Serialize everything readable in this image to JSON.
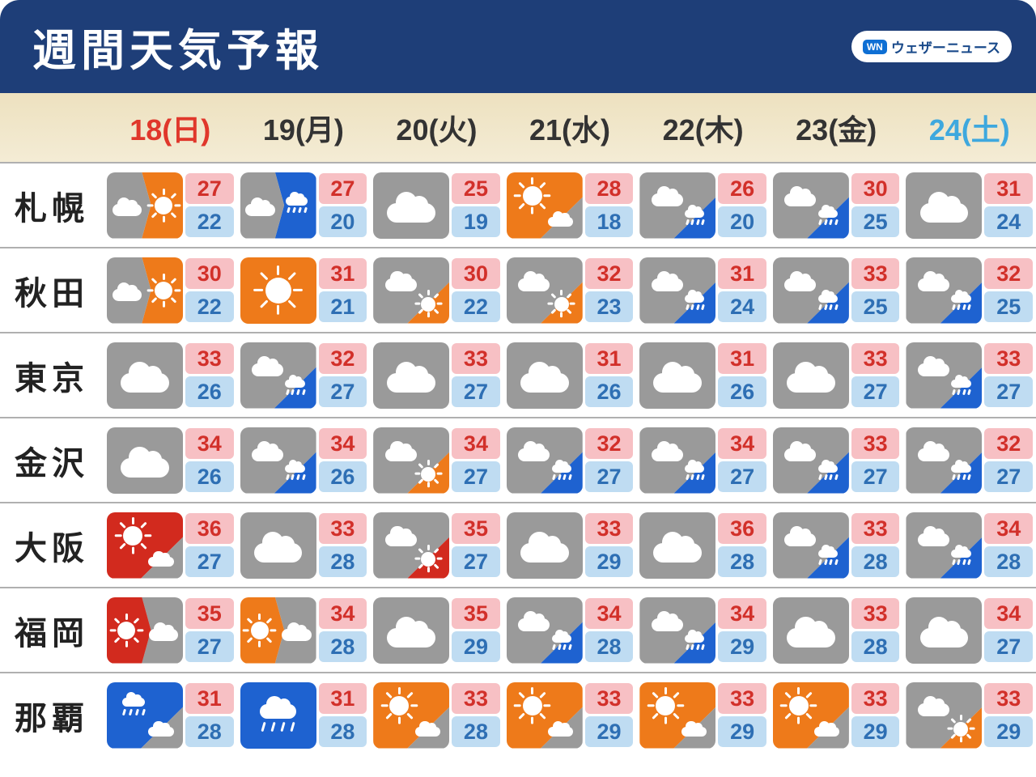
{
  "title": "週間天気予報",
  "brand": "ウェザーニュース",
  "brand_badge": "WN",
  "colors": {
    "header_bg": "#1e3e78",
    "days_bg_gradient_from": "#ede1bf",
    "days_bg_gradient_to": "#f4ecd5",
    "day_default": "#333333",
    "day_sunday": "#e0372b",
    "day_saturday": "#3ea8de",
    "hi_bg": "#f7c0c4",
    "hi_text": "#d2302a",
    "lo_bg": "#bfdcf2",
    "lo_text": "#2e6fb4",
    "wx_gray": "#9a9a9a",
    "wx_orange": "#ee7a1a",
    "wx_blue": "#1e62d0",
    "wx_red": "#d22a1e"
  },
  "days": [
    {
      "label": "18(日)",
      "color_key": "day_sunday"
    },
    {
      "label": "19(月)",
      "color_key": "day_default"
    },
    {
      "label": "20(火)",
      "color_key": "day_default"
    },
    {
      "label": "21(水)",
      "color_key": "day_default"
    },
    {
      "label": "22(木)",
      "color_key": "day_default"
    },
    {
      "label": "23(金)",
      "color_key": "day_default"
    },
    {
      "label": "24(土)",
      "color_key": "day_saturday"
    }
  ],
  "cities": [
    {
      "name": "札幌",
      "cells": [
        {
          "wx": "cloud_then_sun_orange",
          "hi": 27,
          "lo": 22
        },
        {
          "wx": "cloud_then_rain",
          "hi": 27,
          "lo": 20
        },
        {
          "wx": "cloud",
          "hi": 25,
          "lo": 19
        },
        {
          "wx": "sun_later_cloud",
          "hi": 28,
          "lo": 18
        },
        {
          "wx": "cloud_later_rain",
          "hi": 26,
          "lo": 20
        },
        {
          "wx": "cloud_later_rain",
          "hi": 30,
          "lo": 25
        },
        {
          "wx": "cloud",
          "hi": 31,
          "lo": 24
        }
      ]
    },
    {
      "name": "秋田",
      "cells": [
        {
          "wx": "cloud_then_sun_orange",
          "hi": 30,
          "lo": 22
        },
        {
          "wx": "sun_orange",
          "hi": 31,
          "lo": 21
        },
        {
          "wx": "cloud_later_sun",
          "hi": 30,
          "lo": 22
        },
        {
          "wx": "cloud_later_sun",
          "hi": 32,
          "lo": 23
        },
        {
          "wx": "cloud_later_rain",
          "hi": 31,
          "lo": 24
        },
        {
          "wx": "cloud_later_rain",
          "hi": 33,
          "lo": 25
        },
        {
          "wx": "cloud_later_rain",
          "hi": 32,
          "lo": 25
        }
      ]
    },
    {
      "name": "東京",
      "cells": [
        {
          "wx": "cloud",
          "hi": 33,
          "lo": 26
        },
        {
          "wx": "cloud_later_rain",
          "hi": 32,
          "lo": 27
        },
        {
          "wx": "cloud",
          "hi": 33,
          "lo": 27
        },
        {
          "wx": "cloud",
          "hi": 31,
          "lo": 26
        },
        {
          "wx": "cloud",
          "hi": 31,
          "lo": 26
        },
        {
          "wx": "cloud",
          "hi": 33,
          "lo": 27
        },
        {
          "wx": "cloud_later_rain",
          "hi": 33,
          "lo": 27
        }
      ]
    },
    {
      "name": "金沢",
      "cells": [
        {
          "wx": "cloud",
          "hi": 34,
          "lo": 26
        },
        {
          "wx": "cloud_later_rain",
          "hi": 34,
          "lo": 26
        },
        {
          "wx": "cloud_later_sun",
          "hi": 34,
          "lo": 27
        },
        {
          "wx": "cloud_later_rain",
          "hi": 32,
          "lo": 27
        },
        {
          "wx": "cloud_later_rain",
          "hi": 34,
          "lo": 27
        },
        {
          "wx": "cloud_later_rain",
          "hi": 33,
          "lo": 27
        },
        {
          "wx": "cloud_later_rain",
          "hi": 32,
          "lo": 27
        }
      ]
    },
    {
      "name": "大阪",
      "cells": [
        {
          "wx": "sun_red_later_cloud",
          "hi": 36,
          "lo": 27
        },
        {
          "wx": "cloud",
          "hi": 33,
          "lo": 28
        },
        {
          "wx": "cloud_later_sun_red",
          "hi": 35,
          "lo": 27
        },
        {
          "wx": "cloud",
          "hi": 33,
          "lo": 29
        },
        {
          "wx": "cloud",
          "hi": 36,
          "lo": 28
        },
        {
          "wx": "cloud_later_rain",
          "hi": 33,
          "lo": 28
        },
        {
          "wx": "cloud_later_rain",
          "hi": 34,
          "lo": 28
        }
      ]
    },
    {
      "name": "福岡",
      "cells": [
        {
          "wx": "sun_red_then_cloud",
          "hi": 35,
          "lo": 27
        },
        {
          "wx": "sun_then_cloud_orange",
          "hi": 34,
          "lo": 28
        },
        {
          "wx": "cloud",
          "hi": 35,
          "lo": 29
        },
        {
          "wx": "cloud_later_rain",
          "hi": 34,
          "lo": 28
        },
        {
          "wx": "cloud_later_rain",
          "hi": 34,
          "lo": 29
        },
        {
          "wx": "cloud",
          "hi": 33,
          "lo": 28
        },
        {
          "wx": "cloud",
          "hi": 34,
          "lo": 27
        }
      ]
    },
    {
      "name": "那覇",
      "cells": [
        {
          "wx": "rain_later_cloud",
          "hi": 31,
          "lo": 28
        },
        {
          "wx": "rain_blue",
          "hi": 31,
          "lo": 28
        },
        {
          "wx": "sun_later_cloud",
          "hi": 33,
          "lo": 28
        },
        {
          "wx": "sun_later_cloud",
          "hi": 33,
          "lo": 29
        },
        {
          "wx": "sun_later_cloud",
          "hi": 33,
          "lo": 29
        },
        {
          "wx": "sun_later_cloud",
          "hi": 33,
          "lo": 29
        },
        {
          "wx": "cloud_later_sun",
          "hi": 33,
          "lo": 29
        }
      ]
    }
  ],
  "weather_icons": {
    "cloud": {
      "left_bg": "wx_gray",
      "right_bg": "wx_gray",
      "left_glyph": "cloud_big",
      "right_glyph": null,
      "split": "none"
    },
    "sun_orange": {
      "left_bg": "wx_orange",
      "right_bg": "wx_orange",
      "left_glyph": "sun_big",
      "right_glyph": null,
      "split": "none"
    },
    "rain_blue": {
      "left_bg": "wx_blue",
      "right_bg": "wx_blue",
      "left_glyph": "rain_big",
      "right_glyph": null,
      "split": "none"
    },
    "cloud_then_sun_orange": {
      "left_bg": "wx_gray",
      "right_bg": "wx_orange",
      "left_glyph": "cloud_sm_l",
      "right_glyph": "sun_sm_r",
      "split": "arrow"
    },
    "cloud_then_rain": {
      "left_bg": "wx_gray",
      "right_bg": "wx_blue",
      "left_glyph": "cloud_sm_l",
      "right_glyph": "rain_sm_r",
      "split": "arrow"
    },
    "sun_then_cloud_orange": {
      "left_bg": "wx_orange",
      "right_bg": "wx_gray",
      "left_glyph": "sun_sm_l",
      "right_glyph": "cloud_sm_r",
      "split": "arrow"
    },
    "sun_red_then_cloud": {
      "left_bg": "wx_red",
      "right_bg": "wx_gray",
      "left_glyph": "sun_sm_l",
      "right_glyph": "cloud_sm_r",
      "split": "arrow"
    },
    "sun_later_cloud": {
      "left_bg": "wx_orange",
      "right_bg": "wx_gray",
      "left_glyph": "sun_sm_tl",
      "right_glyph": "cloud_sm_br",
      "split": "diag"
    },
    "sun_red_later_cloud": {
      "left_bg": "wx_red",
      "right_bg": "wx_gray",
      "left_glyph": "sun_sm_tl",
      "right_glyph": "cloud_sm_br",
      "split": "diag"
    },
    "cloud_later_rain": {
      "left_bg": "wx_gray",
      "right_bg": "wx_blue",
      "left_glyph": "cloud_sm_tl",
      "right_glyph": "rain_sm_br",
      "split": "diag"
    },
    "cloud_later_sun": {
      "left_bg": "wx_gray",
      "right_bg": "wx_orange",
      "left_glyph": "cloud_sm_tl",
      "right_glyph": "sun_sm_br",
      "split": "diag"
    },
    "cloud_later_sun_red": {
      "left_bg": "wx_gray",
      "right_bg": "wx_red",
      "left_glyph": "cloud_sm_tl",
      "right_glyph": "sun_sm_br",
      "split": "diag"
    },
    "rain_later_cloud": {
      "left_bg": "wx_blue",
      "right_bg": "wx_gray",
      "left_glyph": "rain_sm_tl",
      "right_glyph": "cloud_sm_br",
      "split": "diag"
    }
  }
}
